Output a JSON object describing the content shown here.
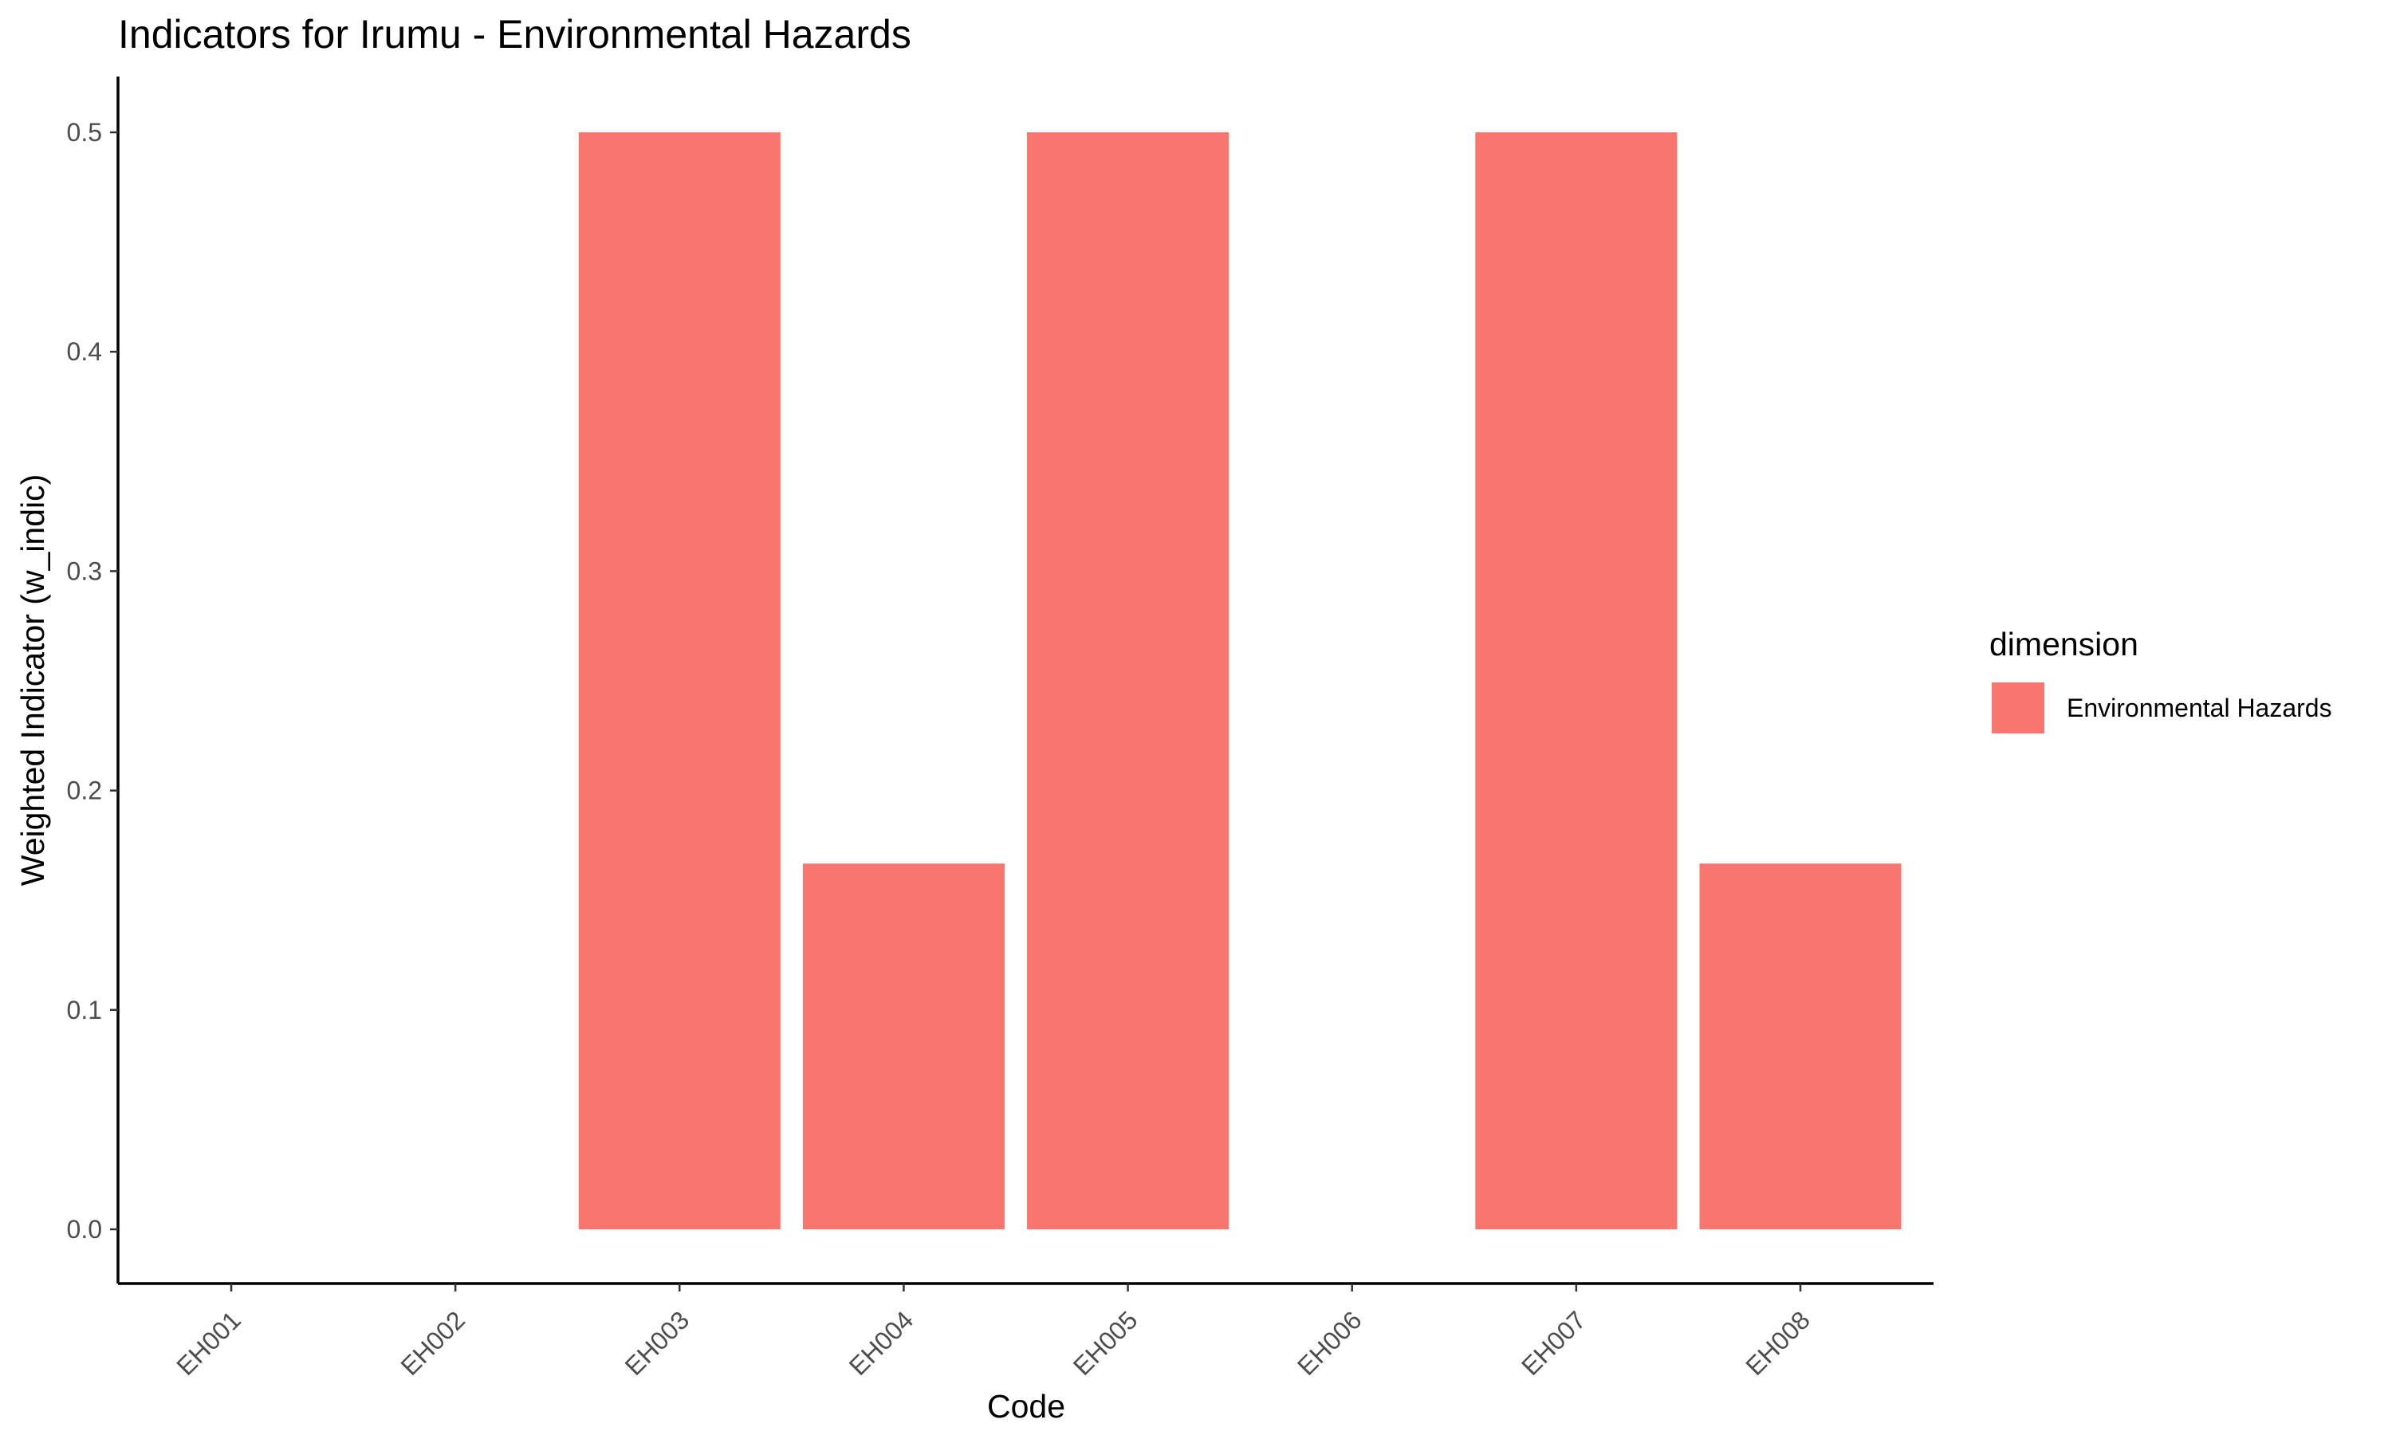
{
  "chart_data": {
    "type": "bar",
    "title": "Indicators for Irumu - Environmental Hazards",
    "xlabel": "Code",
    "ylabel": "Weighted Indicator (w_indic)",
    "categories": [
      "EH001",
      "EH002",
      "EH003",
      "EH004",
      "EH005",
      "EH006",
      "EH007",
      "EH008"
    ],
    "series": [
      {
        "name": "Environmental Hazards",
        "color": "#F8766D",
        "values": [
          0,
          0,
          0.5,
          0.1667,
          0.5,
          0,
          0.5,
          0.1667
        ]
      }
    ],
    "ylim": [
      0,
      0.5
    ],
    "yticks": [
      "0.0",
      "0.1",
      "0.2",
      "0.3",
      "0.4",
      "0.5"
    ],
    "grid": false,
    "legend": {
      "title": "dimension",
      "position": "right"
    }
  }
}
